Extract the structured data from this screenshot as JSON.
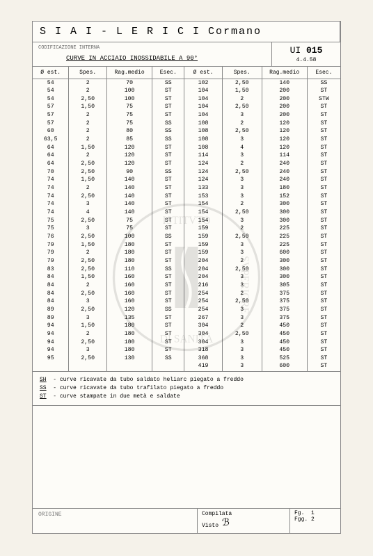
{
  "header": {
    "company": "S I A I - L E R I C I  Cormano",
    "section_small": "CODIFICAZIONE INTERNA",
    "subtitle": "CURVE IN ACCIAIO INOSSIDABILE A 90°",
    "code_prefix": "UI",
    "code_num": "015",
    "date": "4.4.58"
  },
  "columns": [
    "Ø est.",
    "Spes.",
    "Rag.medio",
    "Esec.",
    "Ø est.",
    "Spes.",
    "Rag.medio",
    "Esec."
  ],
  "rows": [
    [
      "54",
      "2",
      "70",
      "SS",
      "102",
      "2,50",
      "140",
      "SS"
    ],
    [
      "54",
      "2",
      "100",
      "ST",
      "104",
      "1,50",
      "200",
      "ST"
    ],
    [
      "54",
      "2,50",
      "100",
      "ST",
      "104",
      "2",
      "200",
      "STW"
    ],
    [
      "57",
      "1,50",
      "75",
      "ST",
      "104",
      "2,50",
      "200",
      "ST"
    ],
    [
      "57",
      "2",
      "75",
      "ST",
      "104",
      "3",
      "200",
      "ST"
    ],
    [
      "57",
      "2",
      "75",
      "SS",
      "108",
      "2",
      "120",
      "ST"
    ],
    [
      "60",
      "2",
      "80",
      "SS",
      "108",
      "2,50",
      "120",
      "ST"
    ],
    [
      "63,5",
      "2",
      "85",
      "SS",
      "108",
      "3",
      "120",
      "ST"
    ],
    [
      "64",
      "1,50",
      "120",
      "ST",
      "108",
      "4",
      "120",
      "ST"
    ],
    [
      "64",
      "2",
      "120",
      "ST",
      "114",
      "3",
      "114",
      "ST"
    ],
    [
      "64",
      "2,50",
      "120",
      "ST",
      "124",
      "2",
      "240",
      "ST"
    ],
    [
      "70",
      "2,50",
      "90",
      "SS",
      "124",
      "2,50",
      "240",
      "ST"
    ],
    [
      "74",
      "1,50",
      "140",
      "ST",
      "124",
      "3",
      "240",
      "ST"
    ],
    [
      "74",
      "2",
      "140",
      "ST",
      "133",
      "3",
      "180",
      "ST"
    ],
    [
      "74",
      "2,50",
      "140",
      "ST",
      "153",
      "3",
      "152",
      "ST"
    ],
    [
      "74",
      "3",
      "140",
      "ST",
      "154",
      "2",
      "300",
      "ST"
    ],
    [
      "74",
      "4",
      "140",
      "ST",
      "154",
      "2,50",
      "300",
      "ST"
    ],
    [
      "75",
      "2,50",
      "75",
      "ST",
      "154",
      "3",
      "300",
      "ST"
    ],
    [
      "75",
      "3",
      "75",
      "ST",
      "159",
      "2",
      "225",
      "ST"
    ],
    [
      "76",
      "2,50",
      "100",
      "SS",
      "159",
      "2,50",
      "225",
      "ST"
    ],
    [
      "79",
      "1,50",
      "180",
      "ST",
      "159",
      "3",
      "225",
      "ST"
    ],
    [
      "79",
      "2",
      "180",
      "ST",
      "159",
      "3",
      "600",
      "ST"
    ],
    [
      "79",
      "2,50",
      "180",
      "ST",
      "204",
      "2",
      "300",
      "ST"
    ],
    [
      "83",
      "2,50",
      "110",
      "SS",
      "204",
      "2,50",
      "300",
      "ST"
    ],
    [
      "84",
      "1,50",
      "160",
      "ST",
      "204",
      "3",
      "300",
      "ST"
    ],
    [
      "84",
      "2",
      "160",
      "ST",
      "216",
      "3",
      "305",
      "ST"
    ],
    [
      "84",
      "2,50",
      "160",
      "ST",
      "254",
      "2",
      "375",
      "ST"
    ],
    [
      "84",
      "3",
      "160",
      "ST",
      "254",
      "2,50",
      "375",
      "ST"
    ],
    [
      "89",
      "2,50",
      "120",
      "SS",
      "254",
      "3",
      "375",
      "ST"
    ],
    [
      "89",
      "3",
      "135",
      "ST",
      "267",
      "3",
      "375",
      "ST"
    ],
    [
      "94",
      "1,50",
      "180",
      "ST",
      "304",
      "2",
      "450",
      "ST"
    ],
    [
      "94",
      "2",
      "180",
      "ST",
      "304",
      "2,50",
      "450",
      "ST"
    ],
    [
      "94",
      "2,50",
      "180",
      "ST",
      "304",
      "3",
      "450",
      "ST"
    ],
    [
      "94",
      "3",
      "180",
      "ST",
      "318",
      "3",
      "450",
      "ST"
    ],
    [
      "95",
      "2,50",
      "130",
      "SS",
      "368",
      "3",
      "525",
      "ST"
    ],
    [
      "",
      "",
      "",
      "",
      "419",
      "3",
      "600",
      "ST"
    ]
  ],
  "legend": {
    "lines": [
      {
        "key": "SH",
        "text": "- curve ricavate da tubo saldato heliarc piegato a freddo"
      },
      {
        "key": "SS",
        "text": "- curve ricavate da tubo trafilato piegato a freddo"
      },
      {
        "key": "ST",
        "text": "- curve stampate in due metà e saldate"
      }
    ]
  },
  "footer": {
    "origine": "ORIGINE",
    "compilata": "Compilata",
    "visto": "Visto",
    "fg": "Fg.",
    "fg_val": "1",
    "fgg": "Fgg.",
    "fgg_val": "2"
  }
}
